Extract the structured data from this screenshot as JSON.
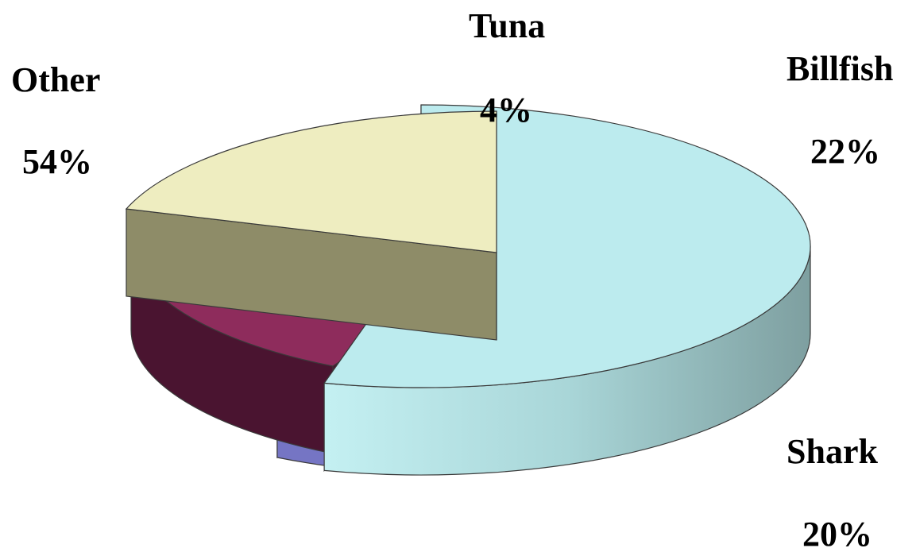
{
  "chart_data": {
    "type": "pie",
    "title": "",
    "exploded": true,
    "three_d": true,
    "categories": [
      "Other",
      "Tuna",
      "Billfish",
      "Shark"
    ],
    "values": [
      54,
      4,
      22,
      20
    ],
    "labels": {
      "Other": {
        "name": "Other",
        "pct": "54%"
      },
      "Tuna": {
        "name": "Tuna",
        "pct": "4%"
      },
      "Billfish": {
        "name": "Billfish",
        "pct": "22%"
      },
      "Shark": {
        "name": "Shark",
        "pct": "20%"
      }
    },
    "colors": {
      "Other": "#BCEBEE",
      "Tuna": "#9393EE",
      "Billfish": "#8E2C5C",
      "Shark": "#EEEDC0"
    },
    "side_colors": {
      "Other": "#7FA3A5",
      "Tuna": "#7575C4",
      "Billfish": "#4A1430",
      "Shark": "#8E8C68"
    },
    "legend": "none"
  }
}
